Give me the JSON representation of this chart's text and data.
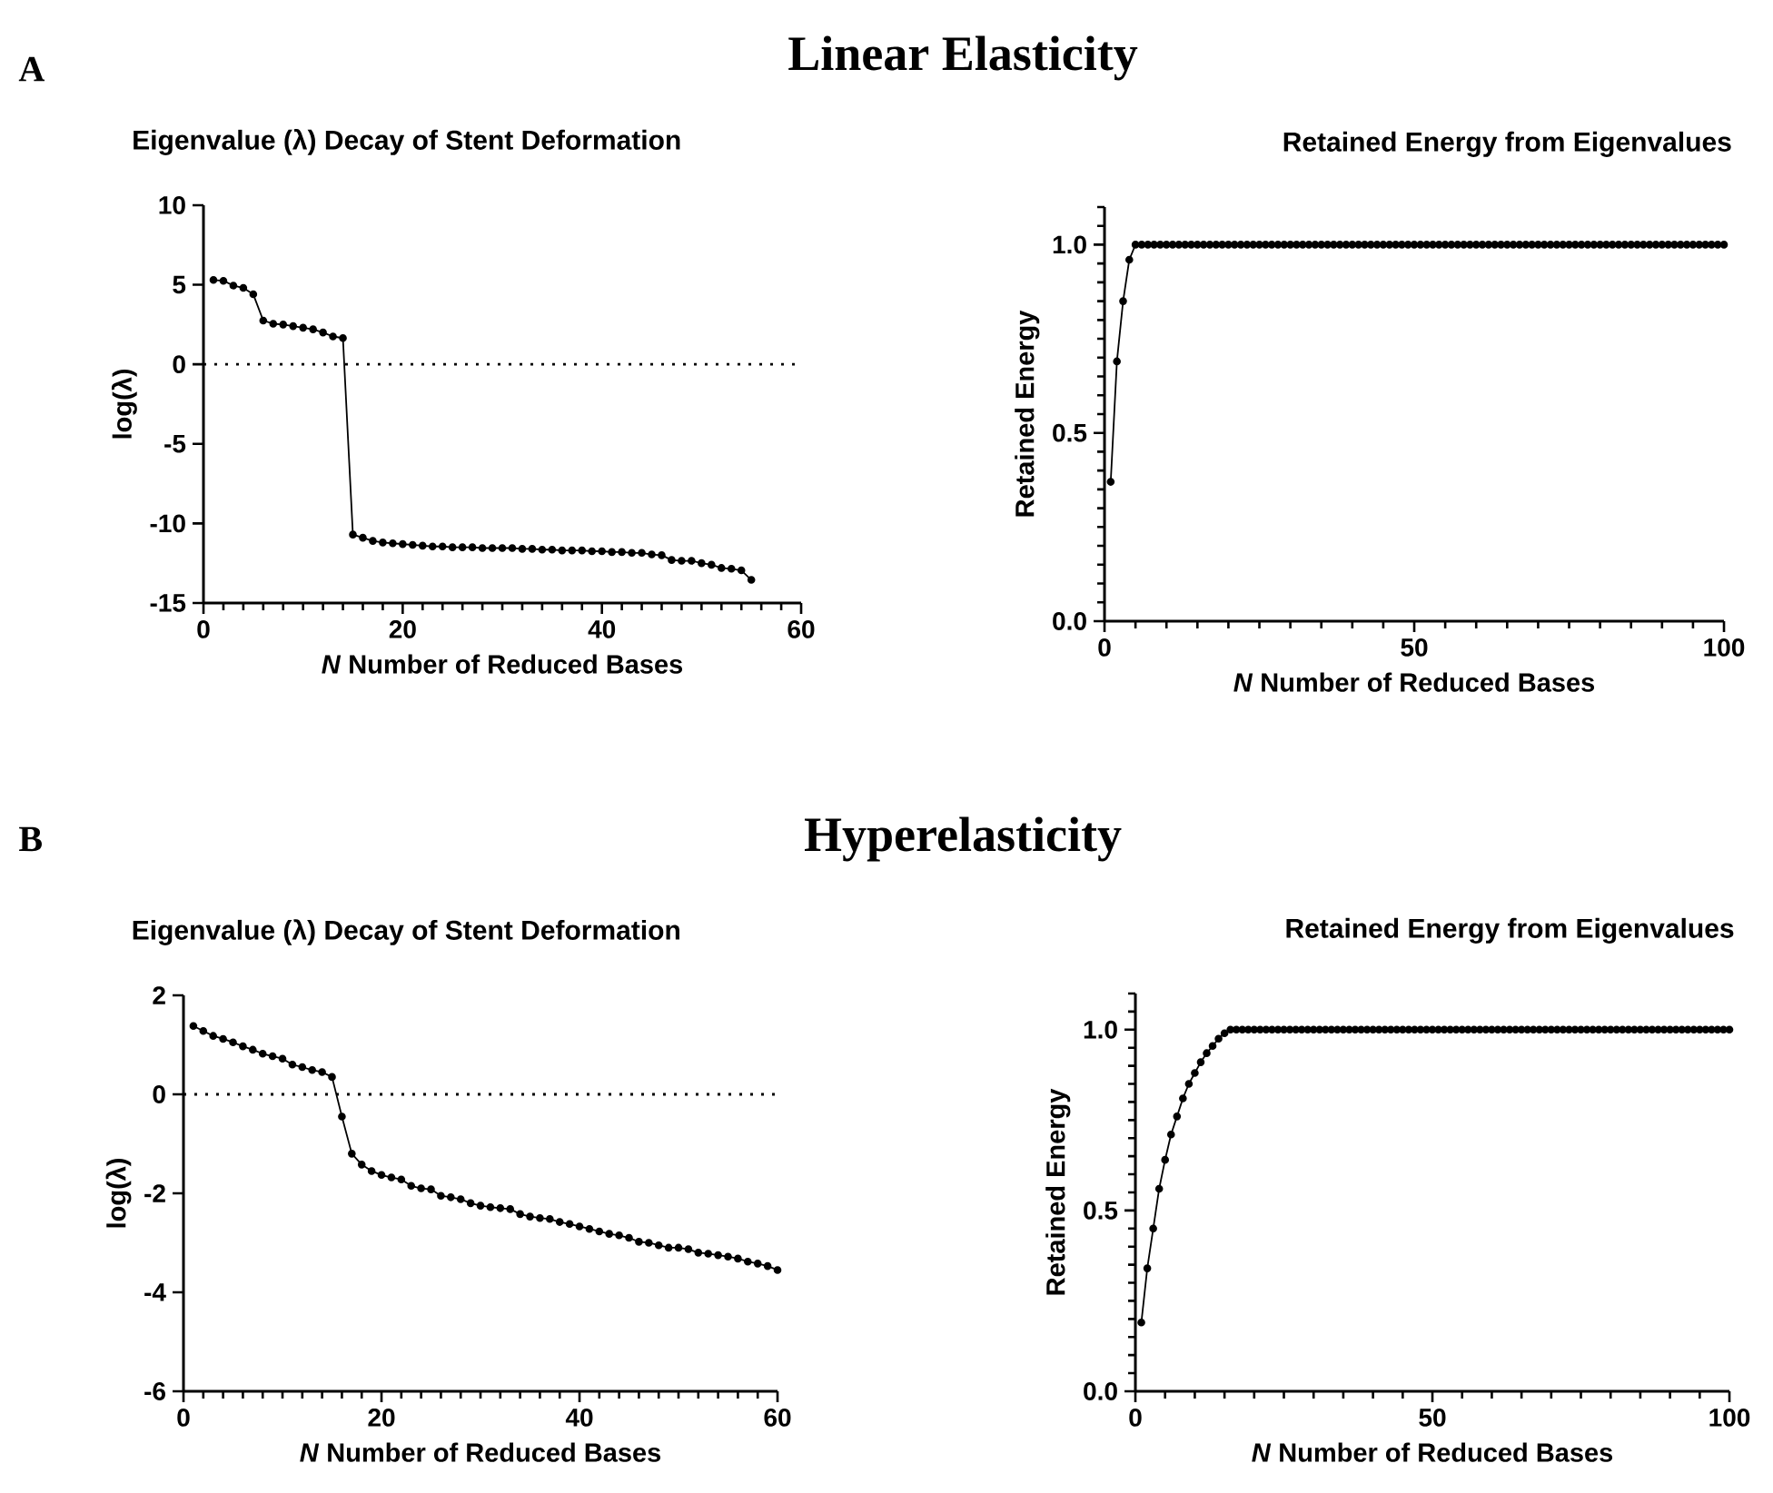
{
  "chart_data": [
    {
      "type": "line",
      "title": "Eigenvalue (λ) Decay of Stent Deformation",
      "xlabel": "*N* Number of Reduced Bases",
      "ylabel": "log(λ)",
      "annotations": [
        "A",
        "Linear Elasticity"
      ],
      "color": "#000000",
      "marker": "circle",
      "x": [
        1,
        2,
        3,
        4,
        5,
        6,
        7,
        8,
        9,
        10,
        11,
        12,
        13,
        14,
        15,
        16,
        17,
        18,
        19,
        20,
        21,
        22,
        23,
        24,
        25,
        26,
        27,
        28,
        29,
        30,
        31,
        32,
        33,
        34,
        35,
        36,
        37,
        38,
        39,
        40,
        41,
        42,
        43,
        44,
        45,
        46,
        47,
        48,
        49,
        50,
        51,
        52,
        53,
        54,
        55
      ],
      "values": [
        5.3,
        5.25,
        4.95,
        4.8,
        4.4,
        2.75,
        2.55,
        2.5,
        2.4,
        2.3,
        2.2,
        2.0,
        1.75,
        1.65,
        -10.7,
        -10.9,
        -11.1,
        -11.2,
        -11.25,
        -11.3,
        -11.35,
        -11.4,
        -11.45,
        -11.45,
        -11.5,
        -11.5,
        -11.5,
        -11.55,
        -11.55,
        -11.55,
        -11.55,
        -11.6,
        -11.6,
        -11.65,
        -11.65,
        -11.7,
        -11.7,
        -11.7,
        -11.75,
        -11.75,
        -11.8,
        -11.8,
        -11.85,
        -11.85,
        -11.95,
        -12.0,
        -12.3,
        -12.35,
        -12.35,
        -12.5,
        -12.6,
        -12.8,
        -12.85,
        -12.95,
        -13.55
      ],
      "xlim": [
        0,
        60
      ],
      "ylim": [
        -15,
        10
      ],
      "xticks": [
        0,
        {
          "value": 2,
          "label": null
        },
        {
          "value": 4,
          "label": null
        },
        {
          "value": 6,
          "label": null
        },
        {
          "value": 8,
          "label": null
        },
        {
          "value": 10,
          "label": null
        },
        {
          "value": 12,
          "label": null
        },
        {
          "value": 14,
          "label": null
        },
        {
          "value": 16,
          "label": null
        },
        {
          "value": 18,
          "label": null
        },
        20,
        {
          "value": 22,
          "label": null
        },
        {
          "value": 24,
          "label": null
        },
        {
          "value": 26,
          "label": null
        },
        {
          "value": 28,
          "label": null
        },
        {
          "value": 30,
          "label": null
        },
        {
          "value": 32,
          "label": null
        },
        {
          "value": 34,
          "label": null
        },
        {
          "value": 36,
          "label": null
        },
        {
          "value": 38,
          "label": null
        },
        40,
        {
          "value": 42,
          "label": null
        },
        {
          "value": 44,
          "label": null
        },
        {
          "value": 46,
          "label": null
        },
        {
          "value": 48,
          "label": null
        },
        {
          "value": 50,
          "label": null
        },
        {
          "value": 52,
          "label": null
        },
        {
          "value": 54,
          "label": null
        },
        {
          "value": 56,
          "label": null
        },
        {
          "value": 58,
          "label": null
        },
        60
      ],
      "yticks": [
        -15,
        -10,
        -5,
        0,
        5,
        10
      ],
      "ref_lines": [
        {
          "axis": "y",
          "value": 0,
          "line_style": "dotted"
        }
      ]
    },
    {
      "type": "line",
      "title": "Retained Energy from Eigenvalues",
      "xlabel": "*N* Number of Reduced Bases",
      "ylabel": "Retained Energy",
      "color": "#000000",
      "marker": "circle",
      "x": [
        1,
        2,
        3,
        4,
        5,
        6,
        7,
        8,
        9,
        10,
        11,
        12,
        13,
        14,
        15,
        16,
        17,
        18,
        19,
        20,
        21,
        22,
        23,
        24,
        25,
        26,
        27,
        28,
        29,
        30,
        31,
        32,
        33,
        34,
        35,
        36,
        37,
        38,
        39,
        40,
        41,
        42,
        43,
        44,
        45,
        46,
        47,
        48,
        49,
        50,
        51,
        52,
        53,
        54,
        55,
        56,
        57,
        58,
        59,
        60,
        61,
        62,
        63,
        64,
        65,
        66,
        67,
        68,
        69,
        70,
        71,
        72,
        73,
        74,
        75,
        76,
        77,
        78,
        79,
        80,
        81,
        82,
        83,
        84,
        85,
        86,
        87,
        88,
        89,
        90,
        91,
        92,
        93,
        94,
        95,
        96,
        97,
        98,
        99,
        100
      ],
      "values": [
        0.37,
        0.69,
        0.85,
        0.96,
        1.0,
        1.0,
        1.0,
        1.0,
        1.0,
        1.0,
        1.0,
        1.0,
        1.0,
        1.0,
        1.0,
        1.0,
        1.0,
        1.0,
        1.0,
        1.0,
        1.0,
        1.0,
        1.0,
        1.0,
        1.0,
        1.0,
        1.0,
        1.0,
        1.0,
        1.0,
        1.0,
        1.0,
        1.0,
        1.0,
        1.0,
        1.0,
        1.0,
        1.0,
        1.0,
        1.0,
        1.0,
        1.0,
        1.0,
        1.0,
        1.0,
        1.0,
        1.0,
        1.0,
        1.0,
        1.0,
        1.0,
        1.0,
        1.0,
        1.0,
        1.0,
        1.0,
        1.0,
        1.0,
        1.0,
        1.0,
        1.0,
        1.0,
        1.0,
        1.0,
        1.0,
        1.0,
        1.0,
        1.0,
        1.0,
        1.0,
        1.0,
        1.0,
        1.0,
        1.0,
        1.0,
        1.0,
        1.0,
        1.0,
        1.0,
        1.0,
        1.0,
        1.0,
        1.0,
        1.0,
        1.0,
        1.0,
        1.0,
        1.0,
        1.0,
        1.0,
        1.0,
        1.0,
        1.0,
        1.0,
        1.0,
        1.0,
        1.0,
        1.0,
        1.0,
        1.0
      ],
      "xlim": [
        0,
        100
      ],
      "ylim": [
        0,
        1.1
      ],
      "xticks": [
        0,
        {
          "value": 5,
          "label": null
        },
        {
          "value": 10,
          "label": null
        },
        {
          "value": 15,
          "label": null
        },
        {
          "value": 20,
          "label": null
        },
        {
          "value": 25,
          "label": null
        },
        {
          "value": 30,
          "label": null
        },
        {
          "value": 35,
          "label": null
        },
        {
          "value": 40,
          "label": null
        },
        {
          "value": 45,
          "label": null
        },
        50,
        {
          "value": 55,
          "label": null
        },
        {
          "value": 60,
          "label": null
        },
        {
          "value": 65,
          "label": null
        },
        {
          "value": 70,
          "label": null
        },
        {
          "value": 75,
          "label": null
        },
        {
          "value": 80,
          "label": null
        },
        {
          "value": 85,
          "label": null
        },
        {
          "value": 90,
          "label": null
        },
        {
          "value": 95,
          "label": null
        },
        100
      ],
      "yticks": [
        {
          "value": 0,
          "label": "0.0"
        },
        {
          "value": 0.05,
          "label": null
        },
        {
          "value": 0.1,
          "label": null
        },
        {
          "value": 0.15,
          "label": null
        },
        {
          "value": 0.2,
          "label": null
        },
        {
          "value": 0.25,
          "label": null
        },
        {
          "value": 0.3,
          "label": null
        },
        {
          "value": 0.35,
          "label": null
        },
        {
          "value": 0.4,
          "label": null
        },
        {
          "value": 0.45,
          "label": null
        },
        {
          "value": 0.5,
          "label": "0.5"
        },
        {
          "value": 0.55,
          "label": null
        },
        {
          "value": 0.6,
          "label": null
        },
        {
          "value": 0.65,
          "label": null
        },
        {
          "value": 0.7,
          "label": null
        },
        {
          "value": 0.75,
          "label": null
        },
        {
          "value": 0.8,
          "label": null
        },
        {
          "value": 0.85,
          "label": null
        },
        {
          "value": 0.9,
          "label": null
        },
        {
          "value": 0.95,
          "label": null
        },
        {
          "value": 1,
          "label": "1.0"
        },
        {
          "value": 1.05,
          "label": null
        },
        {
          "value": 1.1,
          "label": null
        }
      ]
    },
    {
      "type": "line",
      "title": "Eigenvalue (λ) Decay of Stent Deformation",
      "xlabel": "*N* Number of Reduced Bases",
      "ylabel": "log(λ)",
      "annotations": [
        "B",
        "Hyperelasticity"
      ],
      "color": "#000000",
      "marker": "circle",
      "x": [
        1,
        2,
        3,
        4,
        5,
        6,
        7,
        8,
        9,
        10,
        11,
        12,
        13,
        14,
        15,
        16,
        17,
        18,
        19,
        20,
        21,
        22,
        23,
        24,
        25,
        26,
        27,
        28,
        29,
        30,
        31,
        32,
        33,
        34,
        35,
        36,
        37,
        38,
        39,
        40,
        41,
        42,
        43,
        44,
        45,
        46,
        47,
        48,
        49,
        50,
        51,
        52,
        53,
        54,
        55,
        56,
        57,
        58,
        59,
        60
      ],
      "values": [
        1.38,
        1.28,
        1.18,
        1.12,
        1.05,
        0.97,
        0.9,
        0.82,
        0.77,
        0.72,
        0.6,
        0.55,
        0.49,
        0.45,
        0.35,
        -0.45,
        -1.2,
        -1.42,
        -1.55,
        -1.63,
        -1.68,
        -1.72,
        -1.85,
        -1.9,
        -1.92,
        -2.05,
        -2.08,
        -2.12,
        -2.2,
        -2.25,
        -2.28,
        -2.3,
        -2.32,
        -2.42,
        -2.47,
        -2.5,
        -2.52,
        -2.58,
        -2.62,
        -2.67,
        -2.72,
        -2.77,
        -2.82,
        -2.85,
        -2.9,
        -2.98,
        -3.0,
        -3.05,
        -3.1,
        -3.1,
        -3.13,
        -3.2,
        -3.22,
        -3.25,
        -3.28,
        -3.32,
        -3.38,
        -3.42,
        -3.47,
        -3.55
      ],
      "xlim": [
        0,
        60
      ],
      "ylim": [
        -6,
        2
      ],
      "xticks": [
        0,
        {
          "value": 2,
          "label": null
        },
        {
          "value": 4,
          "label": null
        },
        {
          "value": 6,
          "label": null
        },
        {
          "value": 8,
          "label": null
        },
        {
          "value": 10,
          "label": null
        },
        {
          "value": 12,
          "label": null
        },
        {
          "value": 14,
          "label": null
        },
        {
          "value": 16,
          "label": null
        },
        {
          "value": 18,
          "label": null
        },
        20,
        {
          "value": 22,
          "label": null
        },
        {
          "value": 24,
          "label": null
        },
        {
          "value": 26,
          "label": null
        },
        {
          "value": 28,
          "label": null
        },
        {
          "value": 30,
          "label": null
        },
        {
          "value": 32,
          "label": null
        },
        {
          "value": 34,
          "label": null
        },
        {
          "value": 36,
          "label": null
        },
        {
          "value": 38,
          "label": null
        },
        40,
        {
          "value": 42,
          "label": null
        },
        {
          "value": 44,
          "label": null
        },
        {
          "value": 46,
          "label": null
        },
        {
          "value": 48,
          "label": null
        },
        {
          "value": 50,
          "label": null
        },
        {
          "value": 52,
          "label": null
        },
        {
          "value": 54,
          "label": null
        },
        {
          "value": 56,
          "label": null
        },
        {
          "value": 58,
          "label": null
        },
        60
      ],
      "yticks": [
        -6,
        -4,
        -2,
        0,
        2
      ],
      "ref_lines": [
        {
          "axis": "y",
          "value": 0,
          "line_style": "dotted"
        }
      ]
    },
    {
      "type": "line",
      "title": "Retained Energy from Eigenvalues",
      "xlabel": "*N* Number of Reduced Bases",
      "ylabel": "Retained Energy",
      "color": "#000000",
      "marker": "circle",
      "x": [
        1,
        2,
        3,
        4,
        5,
        6,
        7,
        8,
        9,
        10,
        11,
        12,
        13,
        14,
        15,
        16,
        17,
        18,
        19,
        20,
        21,
        22,
        23,
        24,
        25,
        26,
        27,
        28,
        29,
        30,
        31,
        32,
        33,
        34,
        35,
        36,
        37,
        38,
        39,
        40,
        41,
        42,
        43,
        44,
        45,
        46,
        47,
        48,
        49,
        50,
        51,
        52,
        53,
        54,
        55,
        56,
        57,
        58,
        59,
        60,
        61,
        62,
        63,
        64,
        65,
        66,
        67,
        68,
        69,
        70,
        71,
        72,
        73,
        74,
        75,
        76,
        77,
        78,
        79,
        80,
        81,
        82,
        83,
        84,
        85,
        86,
        87,
        88,
        89,
        90,
        91,
        92,
        93,
        94,
        95,
        96,
        97,
        98,
        99,
        100
      ],
      "values": [
        0.19,
        0.34,
        0.45,
        0.56,
        0.64,
        0.71,
        0.76,
        0.81,
        0.85,
        0.88,
        0.91,
        0.935,
        0.955,
        0.975,
        0.99,
        1.0,
        1.0,
        1.0,
        1.0,
        1.0,
        1.0,
        1.0,
        1.0,
        1.0,
        1.0,
        1.0,
        1.0,
        1.0,
        1.0,
        1.0,
        1.0,
        1.0,
        1.0,
        1.0,
        1.0,
        1.0,
        1.0,
        1.0,
        1.0,
        1.0,
        1.0,
        1.0,
        1.0,
        1.0,
        1.0,
        1.0,
        1.0,
        1.0,
        1.0,
        1.0,
        1.0,
        1.0,
        1.0,
        1.0,
        1.0,
        1.0,
        1.0,
        1.0,
        1.0,
        1.0,
        1.0,
        1.0,
        1.0,
        1.0,
        1.0,
        1.0,
        1.0,
        1.0,
        1.0,
        1.0,
        1.0,
        1.0,
        1.0,
        1.0,
        1.0,
        1.0,
        1.0,
        1.0,
        1.0,
        1.0,
        1.0,
        1.0,
        1.0,
        1.0,
        1.0,
        1.0,
        1.0,
        1.0,
        1.0,
        1.0,
        1.0,
        1.0,
        1.0,
        1.0,
        1.0,
        1.0,
        1.0,
        1.0,
        1.0,
        1.0
      ],
      "xlim": [
        0,
        100
      ],
      "ylim": [
        0,
        1.1
      ],
      "xticks": [
        0,
        {
          "value": 5,
          "label": null
        },
        {
          "value": 10,
          "label": null
        },
        {
          "value": 15,
          "label": null
        },
        {
          "value": 20,
          "label": null
        },
        {
          "value": 25,
          "label": null
        },
        {
          "value": 30,
          "label": null
        },
        {
          "value": 35,
          "label": null
        },
        {
          "value": 40,
          "label": null
        },
        {
          "value": 45,
          "label": null
        },
        50,
        {
          "value": 55,
          "label": null
        },
        {
          "value": 60,
          "label": null
        },
        {
          "value": 65,
          "label": null
        },
        {
          "value": 70,
          "label": null
        },
        {
          "value": 75,
          "label": null
        },
        {
          "value": 80,
          "label": null
        },
        {
          "value": 85,
          "label": null
        },
        {
          "value": 90,
          "label": null
        },
        {
          "value": 95,
          "label": null
        },
        100
      ],
      "yticks": [
        {
          "value": 0,
          "label": "0.0"
        },
        {
          "value": 0.05,
          "label": null
        },
        {
          "value": 0.1,
          "label": null
        },
        {
          "value": 0.15,
          "label": null
        },
        {
          "value": 0.2,
          "label": null
        },
        {
          "value": 0.25,
          "label": null
        },
        {
          "value": 0.3,
          "label": null
        },
        {
          "value": 0.35,
          "label": null
        },
        {
          "value": 0.4,
          "label": null
        },
        {
          "value": 0.45,
          "label": null
        },
        {
          "value": 0.5,
          "label": "0.5"
        },
        {
          "value": 0.55,
          "label": null
        },
        {
          "value": 0.6,
          "label": null
        },
        {
          "value": 0.65,
          "label": null
        },
        {
          "value": 0.7,
          "label": null
        },
        {
          "value": 0.75,
          "label": null
        },
        {
          "value": 0.8,
          "label": null
        },
        {
          "value": 0.85,
          "label": null
        },
        {
          "value": 0.9,
          "label": null
        },
        {
          "value": 0.95,
          "label": null
        },
        {
          "value": 1,
          "label": "1.0"
        },
        {
          "value": 1.05,
          "label": null
        },
        {
          "value": 1.1,
          "label": null
        }
      ]
    }
  ]
}
